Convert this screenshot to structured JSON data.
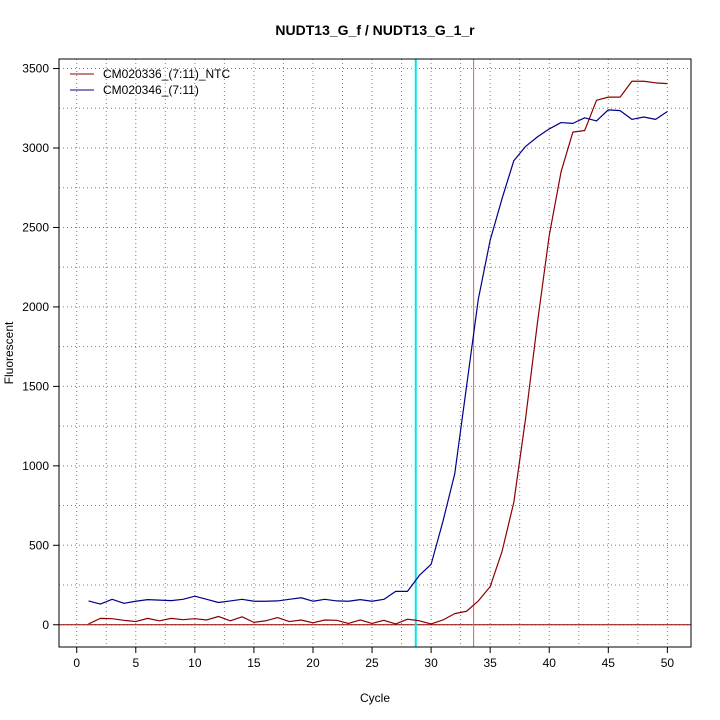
{
  "chart_data": {
    "type": "line",
    "title": "NUDT13_G_f / NUDT13_G_1_r",
    "xlabel": "Cycle",
    "ylabel": "Fluorescent",
    "xlim": [
      -1.5,
      52
    ],
    "ylim": [
      -140,
      3560
    ],
    "x_ticks": [
      0,
      5,
      10,
      15,
      20,
      25,
      30,
      35,
      40,
      45,
      50
    ],
    "y_ticks": [
      0,
      500,
      1000,
      1500,
      2000,
      2500,
      3000,
      3500
    ],
    "grid": true,
    "legend_position": "top-left",
    "series": [
      {
        "name": "CM020336_(7:11)_NTC",
        "color": "#8b0000",
        "x": [
          1,
          2,
          3,
          4,
          5,
          6,
          7,
          8,
          9,
          10,
          11,
          12,
          13,
          14,
          15,
          16,
          17,
          18,
          19,
          20,
          21,
          22,
          23,
          24,
          25,
          26,
          27,
          28,
          29,
          30,
          31,
          32,
          33,
          34,
          35,
          36,
          37,
          38,
          39,
          40,
          41,
          42,
          43,
          44,
          45,
          46,
          47,
          48,
          49,
          50
        ],
        "values": [
          5,
          40,
          38,
          28,
          20,
          40,
          25,
          40,
          32,
          38,
          30,
          52,
          25,
          50,
          15,
          25,
          45,
          20,
          30,
          12,
          30,
          28,
          8,
          30,
          8,
          28,
          5,
          35,
          25,
          5,
          30,
          70,
          85,
          150,
          240,
          460,
          770,
          1300,
          1900,
          2450,
          2850,
          3100,
          3110,
          3300,
          3320,
          3320,
          3420,
          3420,
          3410,
          3405
        ]
      },
      {
        "name": "CM020346_(7:11)",
        "color": "#00008b",
        "x": [
          1,
          2,
          3,
          4,
          5,
          6,
          7,
          8,
          9,
          10,
          11,
          12,
          13,
          14,
          15,
          16,
          17,
          18,
          19,
          20,
          21,
          22,
          23,
          24,
          25,
          26,
          27,
          28,
          29,
          30,
          31,
          32,
          33,
          34,
          35,
          36,
          37,
          38,
          39,
          40,
          41,
          42,
          43,
          44,
          45,
          46,
          47,
          48,
          49,
          50
        ],
        "values": [
          150,
          130,
          160,
          135,
          148,
          158,
          155,
          152,
          160,
          180,
          160,
          140,
          150,
          160,
          148,
          148,
          150,
          160,
          170,
          148,
          160,
          150,
          148,
          158,
          148,
          160,
          210,
          210,
          310,
          380,
          650,
          950,
          1500,
          2050,
          2420,
          2680,
          2920,
          3010,
          3070,
          3120,
          3160,
          3155,
          3190,
          3170,
          3240,
          3235,
          3180,
          3195,
          3180,
          3230
        ]
      }
    ],
    "vertical_lines": [
      {
        "x": 28.7,
        "color": "#00e5ee"
      },
      {
        "x": 33.6,
        "color": "#e35b5b"
      }
    ],
    "horizontal_lines": [
      {
        "y": 0,
        "color": "#8b0000"
      }
    ]
  }
}
